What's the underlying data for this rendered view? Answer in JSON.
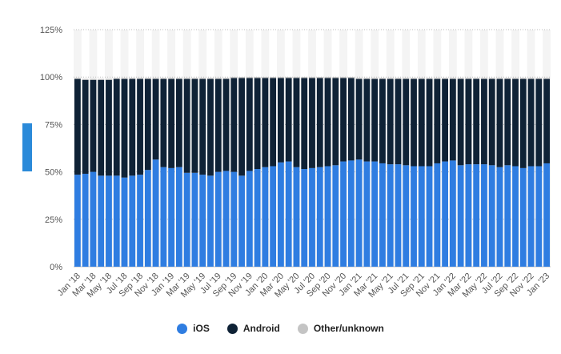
{
  "colors": {
    "ios": "#2f7de1",
    "android": "#0f2236",
    "other": "#c4c4c4",
    "grid": "#bdbdbd",
    "band": "#f4f4f4"
  },
  "legend": [
    {
      "name": "iOS",
      "color": "#2f7de1"
    },
    {
      "name": "Android",
      "color": "#0f2236"
    },
    {
      "name": "Other/unknown",
      "color": "#c4c4c4"
    }
  ],
  "chart_data": {
    "type": "bar",
    "stacked": true,
    "grid": true,
    "legend_position": "bottom",
    "ylim": [
      0,
      125
    ],
    "yticks": [
      "0%",
      "25%",
      "50%",
      "75%",
      "100%",
      "125%"
    ],
    "categories": [
      "Jan '18",
      "Feb '18",
      "Mar '18",
      "Apr '18",
      "May '18",
      "Jun '18",
      "Jul '18",
      "Aug '18",
      "Sep '18",
      "Oct '18",
      "Nov '18",
      "Dec '18",
      "Jan '19",
      "Feb '19",
      "Mar '19",
      "Apr '19",
      "May '19",
      "Jun '19",
      "Jul '19",
      "Aug '19",
      "Sep '19",
      "Oct '19",
      "Nov '19",
      "Dec '19",
      "Jan '20",
      "Feb '20",
      "Mar '20",
      "Apr '20",
      "May '20",
      "Jun '20",
      "Jul '20",
      "Aug '20",
      "Sep '20",
      "Oct '20",
      "Nov '20",
      "Dec '20",
      "Jan '21",
      "Feb '21",
      "Mar '21",
      "Apr '21",
      "May '21",
      "Jun '21",
      "Jul '21",
      "Aug '21",
      "Sep '21",
      "Oct '21",
      "Nov '21",
      "Dec '21",
      "Jan '22",
      "Feb '22",
      "Mar '22",
      "Apr '22",
      "May '22",
      "Jun '22",
      "Jul '22",
      "Aug '22",
      "Sep '22",
      "Oct '22",
      "Nov '22",
      "Dec '22",
      "Jan '23"
    ],
    "xtick_labels": [
      "Jan '18",
      "Mar '18",
      "May '18",
      "Jul '18",
      "Sep '18",
      "Nov '18",
      "Jan '19",
      "Mar '19",
      "May '19",
      "Jul '19",
      "Sep '19",
      "Nov '19",
      "Jan '20",
      "Mar '20",
      "May '20",
      "Jul '20",
      "Sep '20",
      "Nov '20",
      "Jan '21",
      "Mar '21",
      "May '21",
      "Jul '21",
      "Sep '21",
      "Nov '21",
      "Jan '22",
      "Mar '22",
      "May '22",
      "Jul '22",
      "Sep '22",
      "Nov '22",
      "Jan '23"
    ],
    "series": [
      {
        "name": "iOS",
        "values": [
          48.5,
          49,
          50,
          48,
          48,
          48,
          47,
          48,
          48.5,
          51,
          56.5,
          52.5,
          52,
          52.5,
          49.5,
          49.5,
          48.5,
          48,
          50,
          50.5,
          50,
          48,
          50.5,
          51.5,
          52.5,
          53,
          55,
          55.5,
          52.5,
          51.5,
          52,
          52.5,
          53,
          53.5,
          55.5,
          56,
          56.5,
          55.5,
          55.5,
          54.5,
          54,
          54,
          53.5,
          53,
          53,
          53,
          54.5,
          55.5,
          56,
          53.5,
          54,
          54,
          54,
          53.5,
          52.5,
          53.5,
          53,
          52,
          53,
          53,
          54.5
        ]
      },
      {
        "name": "Android",
        "values": [
          50.5,
          49.5,
          48.5,
          50.5,
          50.5,
          51,
          52,
          51,
          50.5,
          48,
          42.5,
          46.5,
          47,
          46.5,
          49.5,
          49.5,
          50.5,
          51,
          49,
          48.5,
          49.5,
          51.5,
          49,
          48,
          47,
          46.5,
          44.5,
          44,
          47,
          48,
          47.5,
          47,
          46.5,
          46,
          44,
          43.5,
          42.5,
          43.5,
          43.5,
          44.5,
          45,
          45,
          45.5,
          46,
          46,
          46,
          44.5,
          43.5,
          43,
          45.5,
          45,
          45,
          45,
          45.5,
          46.5,
          45.5,
          46,
          47,
          46,
          46,
          44.5
        ]
      },
      {
        "name": "Other/unknown",
        "values": [
          0.5,
          0.5,
          0.5,
          0.5,
          0.5,
          0.5,
          0.5,
          0.5,
          0.5,
          0.5,
          0.5,
          0.5,
          0.5,
          0.5,
          0.5,
          0.5,
          0.5,
          0.5,
          0.5,
          0.5,
          0.5,
          0.5,
          0.5,
          0.5,
          0.5,
          0.5,
          0.5,
          0.5,
          0.5,
          0.5,
          0.5,
          0.5,
          0.5,
          0.5,
          0.5,
          0.5,
          0.5,
          0.5,
          0.5,
          0.5,
          0.5,
          0.5,
          0.5,
          0.5,
          0.5,
          0.5,
          0.5,
          0.5,
          0.5,
          0.5,
          0.5,
          0.5,
          0.5,
          0.5,
          0.5,
          0.5,
          0.5,
          0.5,
          0.5,
          0.5,
          0.5
        ]
      }
    ]
  }
}
